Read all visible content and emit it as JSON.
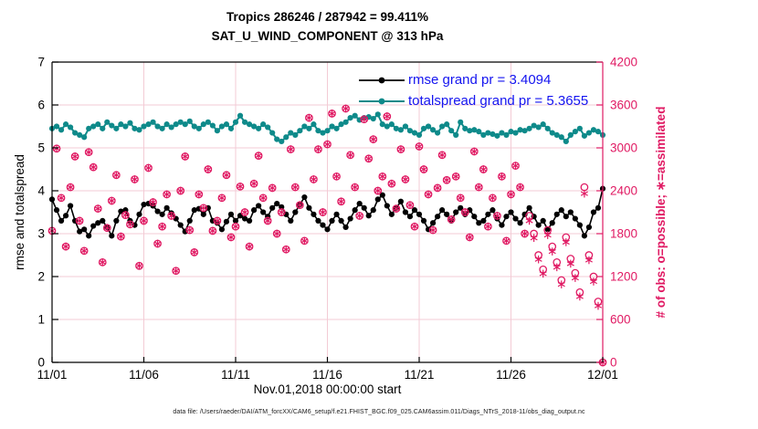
{
  "header": {
    "title_line1": "Tropics 286246 / 287942 = 99.411%",
    "title_line2": "SAT_U_WIND_COMPONENT @ 313 hPa"
  },
  "footer": {
    "data_file": "data file: /Users/raeder/DAI/ATM_forcXX/CAM6_setup/f.e21.FHIST_BGC.f09_025.CAM6assim.011/Diags_NTrS_2018-11/obs_diag_output.nc"
  },
  "colors": {
    "rmse": "#000000",
    "totalspread": "#0e8a8a",
    "obs": "#e01a63",
    "legend_text": "#1414f0",
    "grid": "#f3cbd5",
    "axis_black": "#000000"
  },
  "chart_data": {
    "type": "line",
    "title": "Tropics 286246 / 287942 = 99.411%",
    "subtitle": "SAT_U_WIND_COMPONENT @ 313 hPa",
    "xlabel": "Nov.01,2018 00:00:00 start",
    "ylabel_left": "rmse and totalspread",
    "ylabel_right": "# of obs: o=possible; ∗=assimilated",
    "ylim_left": [
      0,
      7
    ],
    "yticks_left": [
      "0",
      "1",
      "2",
      "3",
      "4",
      "5",
      "6",
      "7"
    ],
    "ylim_right": [
      0,
      4200
    ],
    "yticks_right": [
      "0",
      "600",
      "1200",
      "1800",
      "2400",
      "3000",
      "3600",
      "4200"
    ],
    "xticklabels": [
      "11/01",
      "11/06",
      "11/11",
      "11/16",
      "11/21",
      "11/26",
      "12/01"
    ],
    "xtick_indices": [
      0,
      20,
      40,
      60,
      80,
      100,
      120
    ],
    "points_per_day": 4,
    "n_points": 121,
    "grid": true,
    "legend": {
      "position": "inside-top-right",
      "entries": [
        {
          "name": "rmse",
          "label": "rmse grand pr = 3.4094"
        },
        {
          "name": "totalspread",
          "label": "totalspread grand pr = 5.3655"
        }
      ]
    },
    "grand_pr": {
      "rmse": 3.4094,
      "totalspread": 5.3655
    },
    "obs_totals": {
      "assimilated": 286246,
      "possible": 287942,
      "percent": 99.411
    },
    "series": [
      {
        "name": "rmse",
        "axis": "left",
        "marker": "filled-point",
        "values": [
          3.8,
          3.55,
          3.3,
          3.42,
          3.65,
          3.3,
          3.05,
          3.1,
          2.95,
          3.18,
          3.25,
          3.3,
          3.15,
          2.95,
          3.3,
          3.52,
          3.55,
          3.3,
          3.2,
          3.45,
          3.68,
          3.7,
          3.65,
          3.52,
          3.45,
          3.6,
          3.48,
          3.35,
          3.2,
          3.05,
          3.3,
          3.55,
          3.58,
          3.45,
          3.6,
          3.3,
          3.25,
          3.1,
          3.28,
          3.45,
          3.3,
          3.42,
          3.35,
          3.3,
          3.55,
          3.65,
          3.5,
          3.4,
          3.6,
          3.7,
          3.62,
          3.45,
          3.3,
          3.5,
          3.68,
          3.85,
          3.6,
          3.45,
          3.3,
          3.2,
          3.1,
          3.3,
          3.45,
          3.3,
          3.15,
          3.35,
          3.55,
          3.7,
          3.6,
          3.42,
          3.55,
          3.8,
          3.9,
          3.65,
          3.45,
          3.6,
          3.75,
          3.5,
          3.4,
          3.55,
          3.45,
          3.3,
          3.1,
          3.25,
          3.4,
          3.55,
          3.45,
          3.3,
          3.5,
          3.6,
          3.45,
          3.55,
          3.4,
          3.25,
          3.3,
          3.45,
          3.55,
          3.35,
          3.2,
          3.4,
          3.5,
          3.35,
          3.25,
          3.45,
          3.6,
          3.4,
          3.2,
          3.3,
          3.1,
          3.25,
          3.45,
          3.55,
          3.4,
          3.5,
          3.35,
          3.2,
          2.95,
          3.15,
          3.5,
          3.6,
          4.05
        ]
      },
      {
        "name": "totalspread",
        "axis": "left",
        "marker": "filled-point",
        "values": [
          5.45,
          5.5,
          5.42,
          5.55,
          5.48,
          5.35,
          5.3,
          5.25,
          5.45,
          5.5,
          5.55,
          5.45,
          5.6,
          5.52,
          5.45,
          5.55,
          5.5,
          5.58,
          5.45,
          5.42,
          5.5,
          5.55,
          5.6,
          5.5,
          5.45,
          5.55,
          5.48,
          5.55,
          5.6,
          5.55,
          5.62,
          5.5,
          5.45,
          5.55,
          5.6,
          5.52,
          5.4,
          5.5,
          5.55,
          5.45,
          5.6,
          5.75,
          5.6,
          5.55,
          5.5,
          5.45,
          5.55,
          5.48,
          5.35,
          5.2,
          5.15,
          5.25,
          5.35,
          5.3,
          5.4,
          5.5,
          5.45,
          5.55,
          5.4,
          5.35,
          5.4,
          5.5,
          5.45,
          5.55,
          5.6,
          5.7,
          5.75,
          5.65,
          5.7,
          5.72,
          5.68,
          5.78,
          5.55,
          5.5,
          5.55,
          5.45,
          5.42,
          5.5,
          5.4,
          5.35,
          5.3,
          5.45,
          5.5,
          5.42,
          5.35,
          5.5,
          5.55,
          5.4,
          5.3,
          5.6,
          5.45,
          5.4,
          5.42,
          5.38,
          5.3,
          5.35,
          5.32,
          5.28,
          5.35,
          5.3,
          5.38,
          5.35,
          5.42,
          5.4,
          5.45,
          5.52,
          5.48,
          5.55,
          5.45,
          5.35,
          5.3,
          5.25,
          5.15,
          5.3,
          5.38,
          5.45,
          5.28,
          5.35,
          5.42,
          5.38,
          5.3
        ]
      },
      {
        "name": "obs_possible",
        "axis": "right",
        "marker": "circle-outline",
        "values": [
          1840,
          2990,
          2300,
          1620,
          2450,
          2880,
          1980,
          1560,
          2940,
          2730,
          2150,
          1400,
          1880,
          2260,
          2620,
          1760,
          2060,
          1930,
          2560,
          1350,
          1980,
          2720,
          2240,
          1660,
          1900,
          2350,
          2050,
          1280,
          2400,
          2880,
          1850,
          1540,
          2350,
          2160,
          2700,
          1840,
          1980,
          2300,
          2620,
          1750,
          1900,
          2460,
          2100,
          1620,
          2500,
          2890,
          2300,
          1980,
          2440,
          1800,
          2100,
          1580,
          2980,
          2450,
          2200,
          1700,
          3420,
          2560,
          2980,
          2100,
          3050,
          3480,
          2600,
          2250,
          3550,
          2900,
          2450,
          2050,
          3400,
          2850,
          3120,
          2400,
          2600,
          3440,
          2500,
          2150,
          2980,
          2560,
          2200,
          1900,
          3020,
          2700,
          2350,
          1850,
          2440,
          2900,
          2550,
          2000,
          2600,
          2300,
          2100,
          1750,
          2950,
          2450,
          2700,
          1900,
          2300,
          2050,
          2600,
          1700,
          2350,
          2750,
          2450,
          1800,
          2050,
          1800,
          1500,
          1300,
          1850,
          1620,
          1400,
          1150,
          1750,
          1450,
          1250,
          980,
          2450,
          1500,
          1200,
          850,
          0
        ]
      },
      {
        "name": "obs_assimilated",
        "axis": "right",
        "marker": "asterisk",
        "values": [
          1840,
          2990,
          2300,
          1620,
          2450,
          2880,
          1980,
          1560,
          2940,
          2730,
          2150,
          1400,
          1880,
          2260,
          2620,
          1760,
          2060,
          1930,
          2560,
          1350,
          1980,
          2720,
          2240,
          1660,
          1900,
          2350,
          2050,
          1280,
          2400,
          2880,
          1850,
          1540,
          2350,
          2160,
          2700,
          1840,
          1980,
          2300,
          2620,
          1750,
          1900,
          2460,
          2100,
          1620,
          2500,
          2890,
          2300,
          1980,
          2440,
          1800,
          2100,
          1580,
          2980,
          2450,
          2200,
          1700,
          3420,
          2560,
          2980,
          2100,
          3050,
          3480,
          2600,
          2250,
          3550,
          2900,
          2450,
          2050,
          3400,
          2850,
          3120,
          2400,
          2600,
          3440,
          2500,
          2150,
          2980,
          2560,
          2200,
          1900,
          3020,
          2700,
          2350,
          1850,
          2440,
          2900,
          2550,
          2000,
          2600,
          2300,
          2100,
          1750,
          2950,
          2450,
          2700,
          1900,
          2300,
          2050,
          2600,
          1700,
          2350,
          2750,
          2450,
          1800,
          1980,
          1740,
          1440,
          1240,
          1780,
          1550,
          1330,
          1090,
          1680,
          1380,
          1180,
          920,
          2360,
          1430,
          1130,
          790,
          0
        ]
      }
    ]
  }
}
